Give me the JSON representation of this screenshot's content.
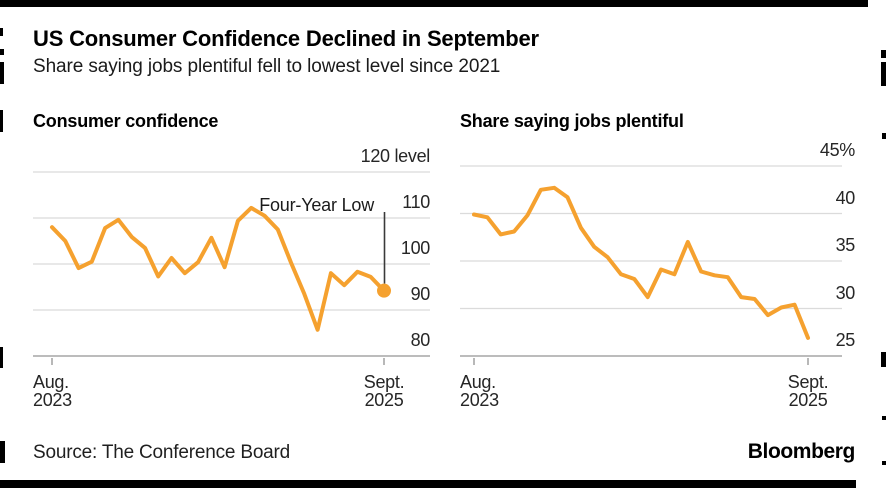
{
  "header": {
    "title": "US Consumer Confidence Declined in September",
    "subtitle": "Share saying jobs plentiful fell to lowest level since 2021"
  },
  "footer": {
    "source": "Source: The Conference Board",
    "brand": "Bloomberg"
  },
  "colors": {
    "line": "#F5A12F",
    "grid": "#DBDBDB",
    "axis": "#A6A6A6",
    "annotation_line": "#3A3A3A",
    "text": "#1B1B1B"
  },
  "chart_data": [
    {
      "type": "line",
      "title": "Consumer confidence",
      "unit": "index level",
      "x": [
        "Aug 2023",
        "Sep 2023",
        "Oct 2023",
        "Nov 2023",
        "Dec 2023",
        "Jan 2024",
        "Feb 2024",
        "Mar 2024",
        "Apr 2024",
        "May 2024",
        "Jun 2024",
        "Jul 2024",
        "Aug 2024",
        "Sep 2024",
        "Oct 2024",
        "Nov 2024",
        "Dec 2024",
        "Jan 2025",
        "Feb 2025",
        "Mar 2025",
        "Apr 2025",
        "May 2025",
        "Jun 2025",
        "Jul 2025",
        "Aug 2025",
        "Sep 2025"
      ],
      "values": [
        108.0,
        105.0,
        99.1,
        100.5,
        107.8,
        109.6,
        105.9,
        103.5,
        97.3,
        101.3,
        98.0,
        100.4,
        105.7,
        99.3,
        109.4,
        112.2,
        110.5,
        107.5,
        100.3,
        93.5,
        85.7,
        98.0,
        95.4,
        98.3,
        97.2,
        94.2
      ],
      "ylim": [
        80,
        124
      ],
      "y_ticks": [
        80,
        90,
        100,
        110,
        120
      ],
      "y_tick_labels": [
        "80",
        "90",
        "100",
        "110",
        "120 level"
      ],
      "x_tick_labels": [
        [
          "Aug.",
          "2023"
        ],
        [
          "Sept.",
          "2025"
        ]
      ],
      "grid": true,
      "legend": "none",
      "annotation": {
        "text": "Four-Year Low",
        "month": "Sep 2025",
        "value": 94.2,
        "marker": "dot"
      }
    },
    {
      "type": "line",
      "title": "Share saying jobs plentiful",
      "unit": "percent",
      "x": [
        "Aug 2023",
        "Sep 2023",
        "Oct 2023",
        "Nov 2023",
        "Dec 2023",
        "Jan 2024",
        "Feb 2024",
        "Mar 2024",
        "Apr 2024",
        "May 2024",
        "Jun 2024",
        "Jul 2024",
        "Aug 2024",
        "Sep 2024",
        "Oct 2024",
        "Nov 2024",
        "Dec 2024",
        "Jan 2025",
        "Feb 2025",
        "Mar 2025",
        "Apr 2025",
        "May 2025",
        "Jun 2025",
        "Jul 2025",
        "Aug 2025",
        "Sep 2025"
      ],
      "values": [
        39.9,
        39.6,
        37.8,
        38.1,
        39.8,
        42.5,
        42.7,
        41.7,
        38.5,
        36.5,
        35.4,
        33.6,
        33.1,
        31.2,
        34.1,
        33.6,
        37.0,
        33.9,
        33.5,
        33.3,
        31.2,
        31.0,
        29.3,
        30.1,
        30.4,
        26.9
      ],
      "ylim": [
        25,
        47
      ],
      "y_ticks": [
        25,
        30,
        35,
        40,
        45
      ],
      "y_tick_labels": [
        "25",
        "30",
        "35",
        "40",
        "45%"
      ],
      "x_tick_labels": [
        [
          "Aug.",
          "2023"
        ],
        [
          "Sept.",
          "2025"
        ]
      ],
      "grid": true,
      "legend": "none"
    }
  ]
}
